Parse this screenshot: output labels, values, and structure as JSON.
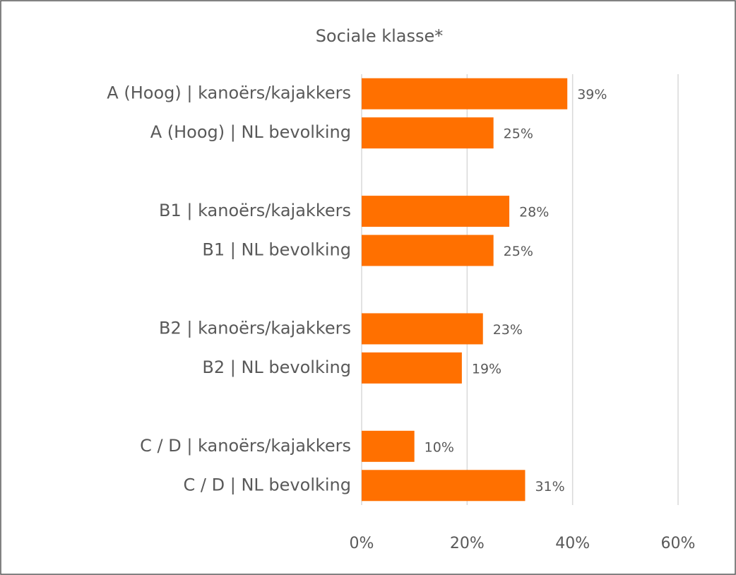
{
  "chart_data": {
    "type": "hbar",
    "title": "Sociale klasse*",
    "categories": [
      "A (Hoog) | kanoërs/kajakkers",
      "A (Hoog) | NL bevolking",
      null,
      "B1 | kanoërs/kajakkers",
      "B1 | NL bevolking",
      null,
      "B2 | kanoërs/kajakkers",
      "B2 | NL bevolking",
      null,
      "C / D | kanoërs/kajakkers",
      "C / D | NL bevolking"
    ],
    "values": [
      39,
      25,
      null,
      28,
      25,
      null,
      23,
      19,
      null,
      10,
      31
    ],
    "value_labels": [
      "39%",
      "25%",
      null,
      "28%",
      "25%",
      null,
      "23%",
      "19%",
      null,
      "10%",
      "31%"
    ],
    "color": "#ff7000",
    "xlim": [
      0,
      60
    ],
    "xticks": [
      {
        "value": 0,
        "label": "0%"
      },
      {
        "value": 20,
        "label": "20%"
      },
      {
        "value": 40,
        "label": "40%"
      },
      {
        "value": 60,
        "label": "60%"
      }
    ],
    "grid": true
  }
}
